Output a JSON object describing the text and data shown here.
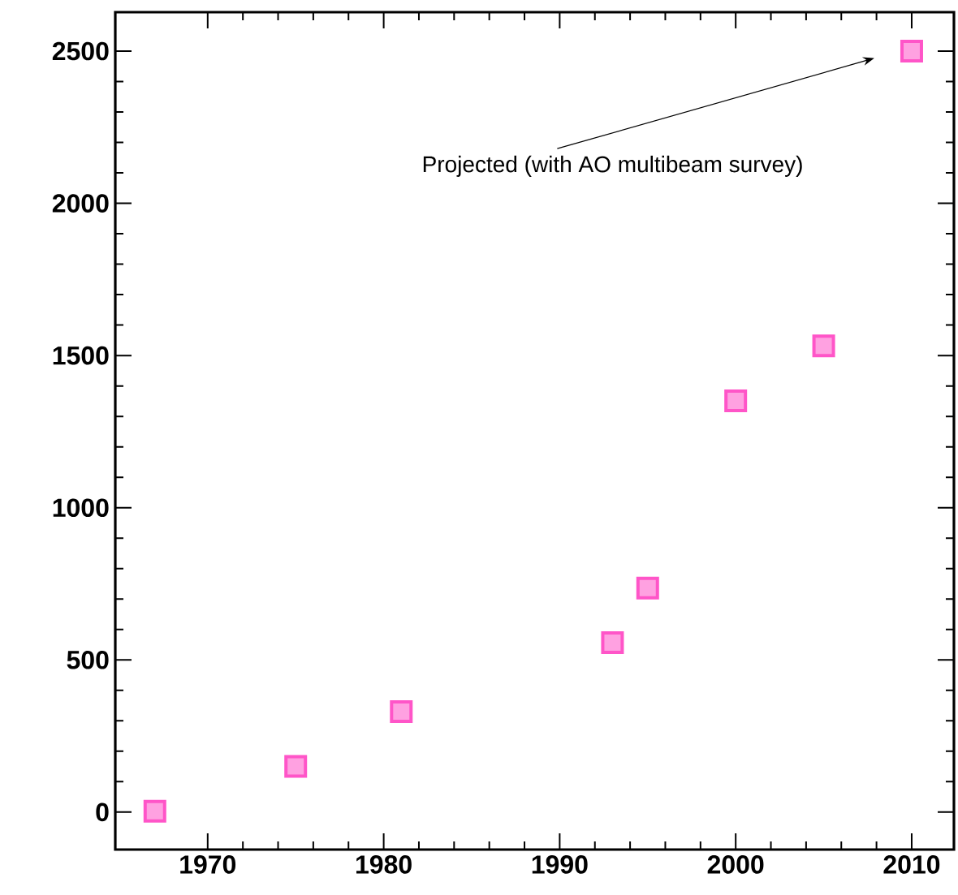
{
  "chart_data": {
    "type": "scatter",
    "x": [
      1967,
      1975,
      1981,
      1993,
      1995,
      2000,
      2005,
      2010
    ],
    "values": [
      3,
      150,
      330,
      557,
      736,
      1351,
      1532,
      2500
    ],
    "color": "#ff55c8",
    "marker": "square",
    "xlim": [
      1964.75,
      2012.4
    ],
    "ylim": [
      -123,
      2628
    ],
    "xticks": [
      1970,
      1980,
      1990,
      2000,
      2010
    ],
    "yticks": [
      0,
      500,
      1000,
      1500,
      2000,
      2500
    ],
    "grid": false,
    "annotations": [
      "Projected (with AO multibeam survey)"
    ]
  }
}
